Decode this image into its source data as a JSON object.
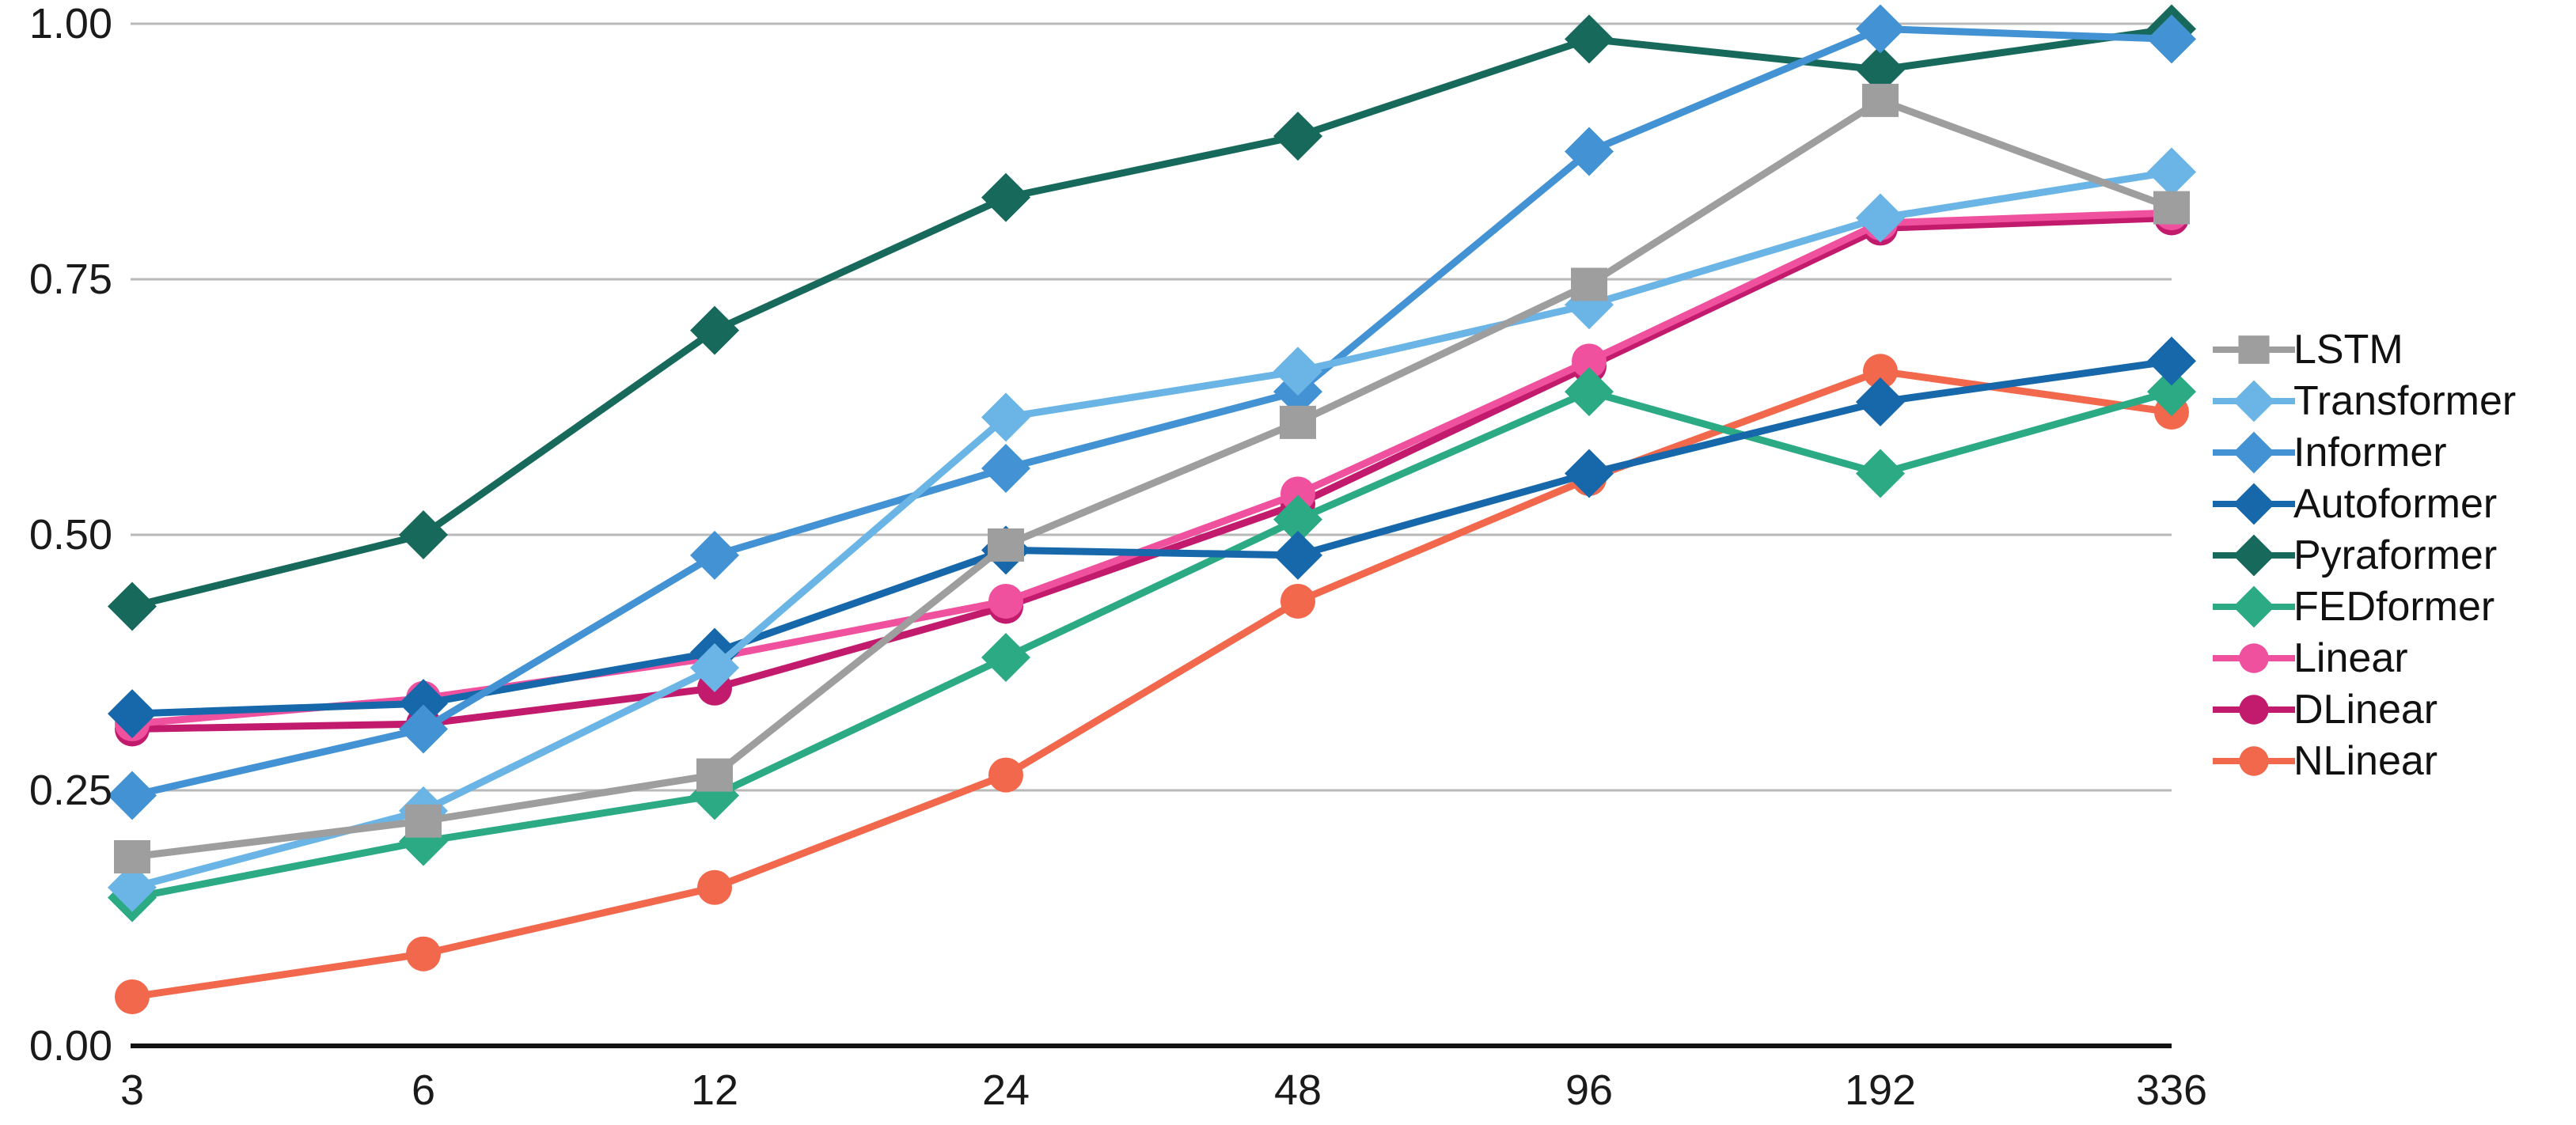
{
  "chart_data": {
    "type": "line",
    "title": "",
    "xlabel": "",
    "ylabel": "",
    "x_categories": [
      "3",
      "6",
      "12",
      "24",
      "48",
      "96",
      "192",
      "336"
    ],
    "y_tick_labels": [
      "0.00",
      "0.25",
      "0.50",
      "0.75",
      "1.00"
    ],
    "y_tick_values": [
      0,
      0.25,
      0.5,
      0.75,
      1.0
    ],
    "ylim": [
      0,
      1
    ],
    "grid": true,
    "legend_position": "right",
    "colors": {
      "gridline": "#b9b9b9",
      "axis_line": "#111111",
      "tick_label": "#1a1a1a",
      "legend_label": "#111111"
    },
    "series": [
      {
        "name": "LSTM",
        "color": "#9E9E9E",
        "marker": "square",
        "values": [
          0.185,
          0.22,
          0.265,
          0.49,
          0.61,
          0.745,
          0.925,
          0.82
        ]
      },
      {
        "name": "Transformer",
        "color": "#6AB5E6",
        "marker": "diamond",
        "values": [
          0.155,
          0.23,
          0.37,
          0.615,
          0.66,
          0.725,
          0.81,
          0.855
        ]
      },
      {
        "name": "Informer",
        "color": "#4292D4",
        "marker": "diamond",
        "values": [
          0.245,
          0.31,
          0.48,
          0.565,
          0.64,
          0.875,
          0.995,
          0.985
        ]
      },
      {
        "name": "Autoformer",
        "color": "#1767AB",
        "marker": "diamond",
        "values": [
          0.325,
          0.335,
          0.385,
          0.485,
          0.48,
          0.56,
          0.63,
          0.67
        ]
      },
      {
        "name": "Pyraformer",
        "color": "#17695B",
        "marker": "diamond",
        "values": [
          0.43,
          0.5,
          0.7,
          0.83,
          0.89,
          0.985,
          0.955,
          0.995
        ]
      },
      {
        "name": "FEDformer",
        "color": "#2BAA84",
        "marker": "diamond",
        "values": [
          0.145,
          0.2,
          0.245,
          0.38,
          0.515,
          0.64,
          0.56,
          0.64
        ]
      },
      {
        "name": "Linear",
        "color": "#F0519E",
        "marker": "circle",
        "values": [
          0.315,
          0.34,
          0.38,
          0.435,
          0.54,
          0.67,
          0.805,
          0.815
        ]
      },
      {
        "name": "DLinear",
        "color": "#C21B6E",
        "marker": "circle",
        "values": [
          0.31,
          0.315,
          0.35,
          0.43,
          0.53,
          0.665,
          0.8,
          0.81
        ]
      },
      {
        "name": "NLinear",
        "color": "#F2684C",
        "marker": "circle",
        "values": [
          0.048,
          0.09,
          0.155,
          0.265,
          0.435,
          0.555,
          0.66,
          0.62
        ]
      }
    ]
  }
}
